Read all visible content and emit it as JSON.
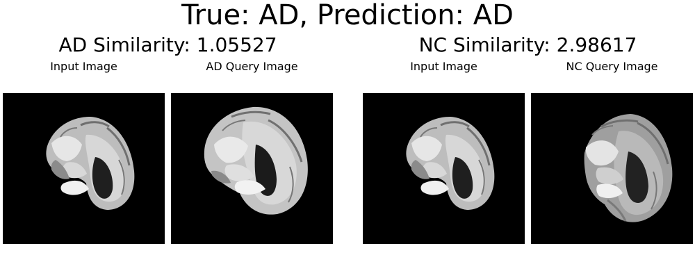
{
  "figure": {
    "title": "True: AD, Prediction: AD"
  },
  "groups": [
    {
      "title": "AD Similarity: 1.05527",
      "panels": [
        {
          "title": "Input Image",
          "image_icon": "brain-mri-sagittal-icon"
        },
        {
          "title": "AD Query Image",
          "image_icon": "brain-mri-sagittal-icon"
        }
      ]
    },
    {
      "title": "NC Similarity: 2.98617",
      "panels": [
        {
          "title": "Input Image",
          "image_icon": "brain-mri-sagittal-icon"
        },
        {
          "title": "NC Query Image",
          "image_icon": "brain-mri-sagittal-icon"
        }
      ]
    }
  ],
  "colors": {
    "background": "#ffffff",
    "panel_background": "#000000",
    "tissue_light": "#d9d9d9",
    "tissue_mid": "#9a9a9a",
    "tissue_dark": "#555555"
  }
}
